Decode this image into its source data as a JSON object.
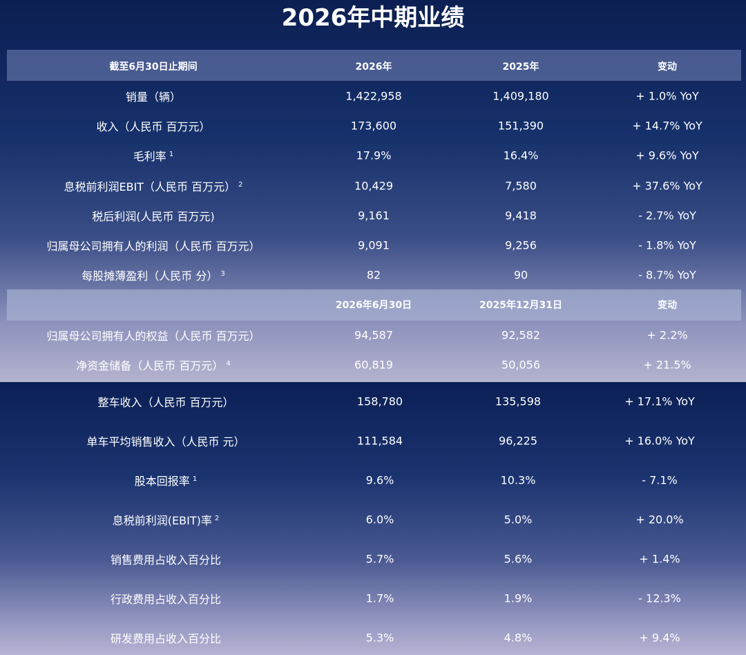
{
  "title": "2026年中期业绩",
  "table1": {
    "header": [
      "截至6月30日止期间",
      "2026年",
      "2025年",
      "变动"
    ],
    "rows": [
      {
        "label": "销量（辆）",
        "values": [
          "1,422,958",
          "1,409,180",
          "+ 1.0% YoY"
        ]
      },
      {
        "label": "收入（人民币 百万元）",
        "values": [
          "173,600",
          "151,390",
          "+ 14.7% YoY"
        ]
      },
      {
        "label": "毛利率",
        "note": "1",
        "values": [
          "17.9%",
          "16.4%",
          "+ 9.6% YoY"
        ]
      },
      {
        "label": "息税前利润EBIT（人民币 百万元）",
        "note": "2",
        "values": [
          "10,429",
          "7,580",
          "+ 37.6% YoY"
        ]
      },
      {
        "label": "税后利润(人民币 百万元)",
        "values": [
          "9,161",
          "9,418",
          "- 2.7% YoY"
        ]
      },
      {
        "label": "归属母公司拥有人的利润（人民币 百万元）",
        "values": [
          "9,091",
          "9,256",
          "- 1.8% YoY"
        ]
      },
      {
        "label": "每股摊薄盈利（人民币 分）",
        "note": "3",
        "values": [
          "82",
          "90",
          "- 8.7% YoY"
        ]
      }
    ]
  },
  "table2": {
    "header": [
      "2026年6月30日",
      "2025年12月31日",
      "变动"
    ],
    "rows": [
      {
        "label": "归属母公司拥有人的权益（人民币 百万元）",
        "values": [
          "94,587",
          "92,582",
          "+ 2.2%"
        ]
      },
      {
        "label": "净资金储备（人民币 百万元）",
        "note": "4",
        "values": [
          "60,819",
          "50,056",
          "+ 21.5%"
        ]
      }
    ]
  },
  "table3": {
    "rows": [
      {
        "label": "整车收入（人民币 百万元）",
        "values": [
          "158,780",
          "135,598",
          "+ 17.1% YoY"
        ]
      },
      {
        "label": "单车平均销售收入（人民币 元）",
        "values": [
          "111,584",
          "96,225",
          "+ 16.0% YoY"
        ]
      },
      {
        "label": "股本回报率",
        "note": "1",
        "values": [
          "9.6%",
          "10.3%",
          "- 7.1%"
        ]
      },
      {
        "label": "息税前利润(EBIT)率",
        "note": "2",
        "values": [
          "6.0%",
          "5.0%",
          "+ 20.0%"
        ]
      },
      {
        "label": "销售费用占收入百分比",
        "values": [
          "5.7%",
          "5.6%",
          "+ 1.4%"
        ]
      },
      {
        "label": "行政费用占收入百分比",
        "values": [
          "1.7%",
          "1.9%",
          "- 12.3%"
        ]
      },
      {
        "label": "研发费用占收入百分比",
        "values": [
          "5.3%",
          "4.8%",
          "+ 9.4%"
        ]
      }
    ]
  }
}
